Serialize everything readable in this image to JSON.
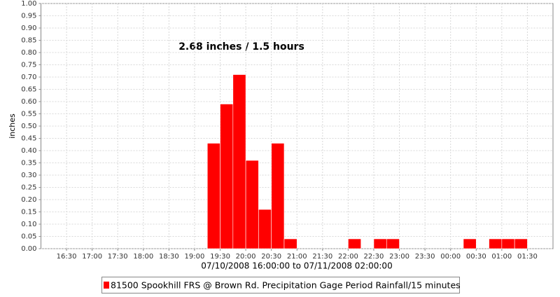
{
  "chart_data": {
    "type": "histogram",
    "annotation": "2.68 inches / 1.5 hours",
    "y_label": "inches",
    "x_label": "07/10/2008 16:00:00 to 07/11/2008 02:00:00",
    "bins": [
      null,
      null,
      "16:30",
      null,
      "17:00",
      null,
      "17:30",
      null,
      "18:00",
      null,
      "18:30",
      null,
      "19:00",
      null,
      "19:30",
      null,
      "20:00",
      null,
      "20:30",
      null,
      "21:00",
      null,
      "21:30",
      null,
      "22:00",
      null,
      "22:30",
      null,
      "23:00",
      null,
      "23:30",
      null,
      "00:00",
      null,
      "00:30",
      null,
      "01:00",
      null,
      "01:30",
      null,
      null
    ],
    "series": [
      {
        "name": "81500 Spookhill FRS @ Brown Rd. Precipitation Gage Period Rainfall/15 minutes",
        "color": "#ff0000",
        "values": [
          0,
          0,
          0,
          0,
          0,
          0,
          0,
          0,
          0,
          0,
          0,
          0,
          0,
          0.43,
          0.59,
          0.71,
          0.36,
          0.16,
          0.43,
          0.04,
          0,
          0,
          0,
          0,
          0.04,
          0,
          0.04,
          0.04,
          0,
          0,
          0,
          0,
          0,
          0.04,
          0,
          0.04,
          0.04,
          0.04,
          0,
          0
        ]
      }
    ],
    "ylim": [
      0,
      1
    ],
    "yticks": [
      {
        "value": 0,
        "label": "0.00"
      },
      {
        "value": 0.05,
        "label": "0.05"
      },
      {
        "value": 0.1,
        "label": "0.10"
      },
      {
        "value": 0.15,
        "label": "0.15"
      },
      {
        "value": 0.2,
        "label": "0.20"
      },
      {
        "value": 0.25,
        "label": "0.25"
      },
      {
        "value": 0.3,
        "label": "0.30"
      },
      {
        "value": 0.35,
        "label": "0.35"
      },
      {
        "value": 0.4,
        "label": "0.40"
      },
      {
        "value": 0.45,
        "label": "0.45"
      },
      {
        "value": 0.5,
        "label": "0.50"
      },
      {
        "value": 0.55,
        "label": "0.55"
      },
      {
        "value": 0.6,
        "label": "0.60"
      },
      {
        "value": 0.65,
        "label": "0.65"
      },
      {
        "value": 0.7,
        "label": "0.70"
      },
      {
        "value": 0.75,
        "label": "0.75"
      },
      {
        "value": 0.8,
        "label": "0.80"
      },
      {
        "value": 0.85,
        "label": "0.85"
      },
      {
        "value": 0.9,
        "label": "0.90"
      },
      {
        "value": 0.95,
        "label": "0.95"
      },
      {
        "value": 1,
        "label": "1.00"
      }
    ],
    "grid": true
  }
}
